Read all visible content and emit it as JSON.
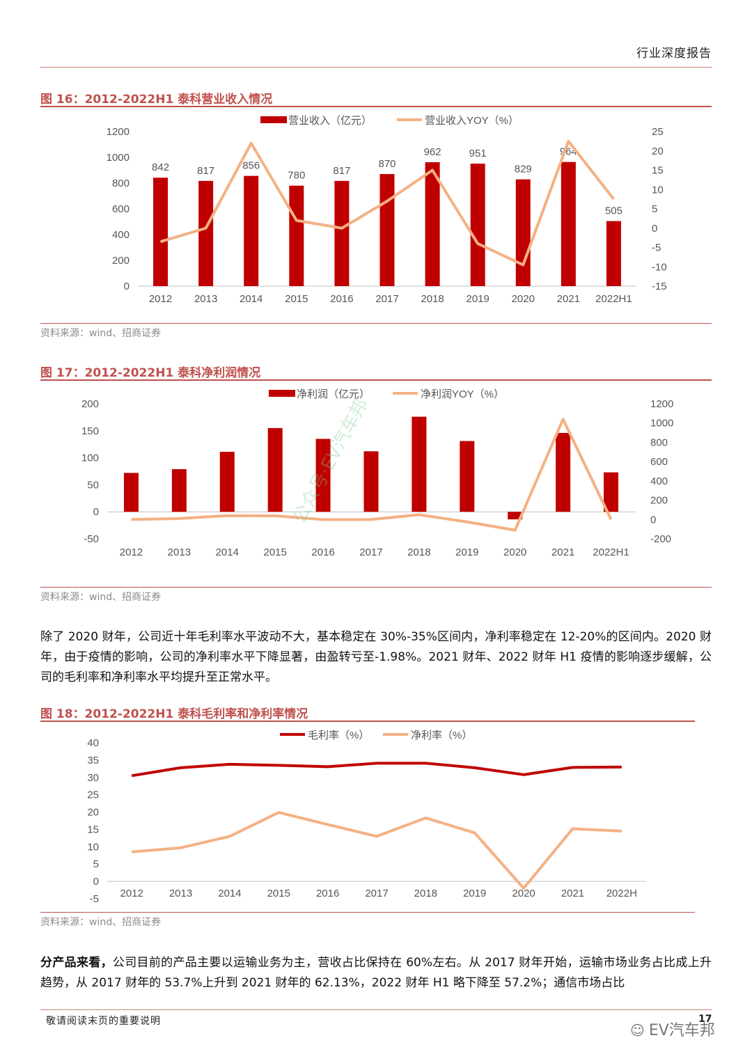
{
  "header": {
    "title": "行业深度报告"
  },
  "fig16": {
    "title": "图 16：2012-2022H1 泰科营业收入情况",
    "source": "资料来源：wind、招商证券",
    "legend": {
      "bar": "营业收入（亿元）",
      "line": "营业收入YOY（%）"
    }
  },
  "fig17": {
    "title": "图 17：2012-2022H1 泰科净利润情况",
    "source": "资料来源：wind、招商证券",
    "legend": {
      "bar": "净利润（亿元）",
      "line": "净利润YOY（%）"
    }
  },
  "fig18": {
    "title": "图 18：2012-2022H1 泰科毛利率和净利率情况",
    "source": "资料来源：wind、招商证券",
    "legend": {
      "line1": "毛利率（%）",
      "line2": "净利率（%）"
    }
  },
  "paragraph1": "除了 2020 财年，公司近十年毛利率水平波动不大，基本稳定在 30%-35%区间内，净利率稳定在 12-20%的区间内。2020 财年，由于疫情的影响，公司的净利率水平下降显著，由盈转亏至-1.98%。2021 财年、2022 财年 H1 疫情的影响逐步缓解，公司的毛利率和净利率水平均提升至正常水平。",
  "paragraph2": {
    "lead": "分产品来看，",
    "rest": "公司目前的产品主要以运输业务为主，营收占比保持在 60%左右。从 2017 财年开始，运输市场业务占比成上升趋势，从 2017 财年的 53.7%上升到 2021 财年的 62.13%，2022 财年 H1 略下降至 57.2%；通信市场占比"
  },
  "footer": {
    "note": "敬请阅读末页的重要说明",
    "page": "17",
    "brand": "EV汽车邦"
  },
  "watermark": "公众号·EV汽车邦",
  "colors": {
    "bar": "#c00000",
    "line_light": "#f4b183",
    "line_dark": "#c00000",
    "accent": "#c0504d"
  },
  "chart_data": [
    {
      "type": "bar",
      "categories": [
        "2012",
        "2013",
        "2014",
        "2015",
        "2016",
        "2017",
        "2018",
        "2019",
        "2020",
        "2021",
        "2022H1"
      ],
      "series": [
        {
          "name": "营业收入（亿元）",
          "type": "bar",
          "axis": "left",
          "values": [
            842,
            817,
            856,
            780,
            817,
            870,
            962,
            951,
            829,
            964,
            505
          ]
        },
        {
          "name": "营业收入YOY（%）",
          "type": "line",
          "axis": "right",
          "values": [
            -3.5,
            0,
            22,
            2,
            0,
            7,
            15,
            -4,
            -9.5,
            22.5,
            7.5
          ]
        }
      ],
      "ylim_left": [
        0,
        1200
      ],
      "yticks_left": [
        0,
        200,
        400,
        600,
        800,
        1000,
        1200
      ],
      "ylim_right": [
        -15,
        25
      ],
      "yticks_right": [
        -15,
        -10,
        -5,
        0,
        5,
        10,
        15,
        20,
        25
      ],
      "data_labels": true,
      "legend_position": "top-center"
    },
    {
      "type": "bar",
      "categories": [
        "2012",
        "2013",
        "2014",
        "2015",
        "2016",
        "2017",
        "2018",
        "2019",
        "2020",
        "2021",
        "2022H1"
      ],
      "series": [
        {
          "name": "净利润（亿元）",
          "type": "bar",
          "axis": "left",
          "values": [
            72,
            79,
            111,
            155,
            135,
            112,
            176,
            131,
            -14,
            146,
            73
          ]
        },
        {
          "name": "净利润YOY（%）",
          "type": "line",
          "axis": "right",
          "values": [
            0,
            10,
            40,
            38,
            -1,
            0,
            50,
            -25,
            -110,
            1040,
            0
          ]
        }
      ],
      "ylim_left": [
        -50,
        200
      ],
      "yticks_left": [
        -50,
        0,
        50,
        100,
        150,
        200
      ],
      "ylim_right": [
        -200,
        1200
      ],
      "yticks_right": [
        -200,
        0,
        200,
        400,
        600,
        800,
        1000,
        1200
      ],
      "legend_position": "top-center"
    },
    {
      "type": "line",
      "categories": [
        "2012",
        "2013",
        "2014",
        "2015",
        "2016",
        "2017",
        "2018",
        "2019",
        "2020",
        "2021",
        "2022H"
      ],
      "series": [
        {
          "name": "毛利率（%）",
          "values": [
            30.5,
            32.8,
            33.8,
            33.5,
            33.1,
            34.1,
            34.1,
            32.8,
            30.8,
            32.9,
            33.0
          ]
        },
        {
          "name": "净利率（%）",
          "values": [
            8.5,
            9.7,
            13,
            19.9,
            16.4,
            13,
            18.3,
            14,
            -1.98,
            15.2,
            14.5
          ]
        }
      ],
      "ylim": [
        -5,
        40
      ],
      "yticks": [
        -5,
        0,
        5,
        10,
        15,
        20,
        25,
        30,
        35,
        40
      ],
      "legend_position": "top-center"
    }
  ]
}
